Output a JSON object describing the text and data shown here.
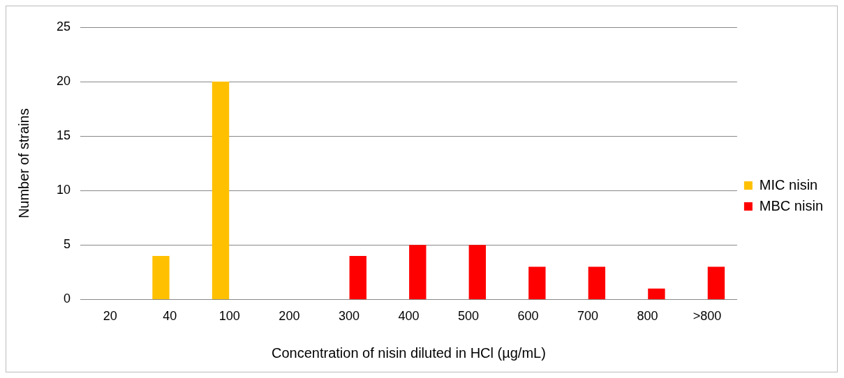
{
  "chart_data": {
    "type": "bar",
    "xlabel": "Concentration of nisin diluted in HCl (µg/mL)",
    "ylabel": "Number of strains",
    "categories": [
      "20",
      "40",
      "100",
      "200",
      "300",
      "400",
      "500",
      "600",
      "700",
      "800",
      ">800"
    ],
    "series": [
      {
        "name": "MIC nisin",
        "color": "#ffc000",
        "values": [
          null,
          4,
          20,
          null,
          null,
          null,
          null,
          null,
          null,
          null,
          null
        ]
      },
      {
        "name": "MBC nisin",
        "color": "#ff0000",
        "values": [
          null,
          null,
          null,
          null,
          4,
          5,
          5,
          3,
          3,
          1,
          3
        ]
      }
    ],
    "ylim": [
      0,
      25
    ],
    "yticks": [
      0,
      5,
      10,
      15,
      20,
      25
    ],
    "grid": "y",
    "legend": "right"
  }
}
